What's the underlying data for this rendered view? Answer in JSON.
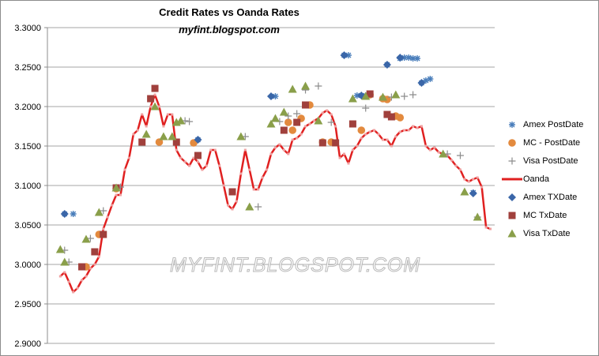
{
  "chart_data": {
    "type": "scatter",
    "title": "Credit Rates vs Oanda Rates",
    "subtitle": "myfint.blogspot.com",
    "watermark": "MYFINT.BLOGSPOT.COM",
    "ylim": [
      2.9,
      3.3
    ],
    "xlim": [
      0,
      104
    ],
    "yticks": [
      "3.3000",
      "3.2500",
      "3.2000",
      "3.1500",
      "3.1000",
      "3.0500",
      "3.0000",
      "2.9500",
      "2.9000"
    ],
    "grid": "horizontal",
    "legend_position": "right",
    "series": [
      {
        "name": "Amex PostDate",
        "marker": "asterisk",
        "color": "#4a7ebb",
        "points": [
          [
            4,
            3.064
          ],
          [
            6,
            3.064
          ],
          [
            35,
            3.158
          ],
          [
            53,
            3.213
          ],
          [
            69,
            3.265
          ],
          [
            70,
            3.265
          ],
          [
            72,
            3.214
          ],
          [
            74,
            3.214
          ],
          [
            79,
            3.253
          ],
          [
            82,
            3.261
          ],
          [
            83,
            3.262
          ],
          [
            84,
            3.262
          ],
          [
            85,
            3.261
          ],
          [
            86,
            3.261
          ],
          [
            87,
            3.23
          ],
          [
            88,
            3.233
          ],
          [
            89,
            3.235
          ],
          [
            99,
            3.091
          ]
        ]
      },
      {
        "name": "MC - PostDate",
        "marker": "circle",
        "color": "#e38a3e",
        "points": [
          [
            9,
            2.997
          ],
          [
            12,
            3.038
          ],
          [
            16,
            3.096
          ],
          [
            26,
            3.155
          ],
          [
            34,
            3.154
          ],
          [
            56,
            3.18
          ],
          [
            57,
            3.17
          ],
          [
            59,
            3.185
          ],
          [
            61,
            3.202
          ],
          [
            64,
            3.155
          ],
          [
            66,
            3.155
          ],
          [
            73,
            3.17
          ],
          [
            75,
            3.215
          ],
          [
            78,
            3.21
          ],
          [
            79,
            3.209
          ],
          [
            81,
            3.188
          ],
          [
            82,
            3.186
          ]
        ]
      },
      {
        "name": "Visa PostDate",
        "marker": "plus",
        "color": "#8c8c8c",
        "points": [
          [
            4,
            3.018
          ],
          [
            5,
            3.003
          ],
          [
            10,
            3.033
          ],
          [
            13,
            3.068
          ],
          [
            17,
            3.098
          ],
          [
            32,
            3.182
          ],
          [
            33,
            3.181
          ],
          [
            46,
            3.162
          ],
          [
            49,
            3.073
          ],
          [
            54,
            3.181
          ],
          [
            56,
            3.188
          ],
          [
            58,
            3.191
          ],
          [
            60,
            3.221
          ],
          [
            63,
            3.226
          ],
          [
            66,
            3.18
          ],
          [
            74,
            3.198
          ],
          [
            80,
            3.212
          ],
          [
            83,
            3.213
          ],
          [
            85,
            3.215
          ],
          [
            93,
            3.14
          ],
          [
            96,
            3.138
          ],
          [
            100,
            3.06
          ]
        ]
      },
      {
        "name": "Oanda",
        "marker": "line",
        "color": "#e02020",
        "points": [
          [
            3,
            2.985
          ],
          [
            4,
            2.99
          ],
          [
            5,
            2.978
          ],
          [
            6,
            2.965
          ],
          [
            7,
            2.97
          ],
          [
            8,
            2.98
          ],
          [
            9,
            2.985
          ],
          [
            10,
            2.995
          ],
          [
            11,
            3.0
          ],
          [
            12,
            3.01
          ],
          [
            13,
            3.045
          ],
          [
            14,
            3.06
          ],
          [
            15,
            3.075
          ],
          [
            16,
            3.088
          ],
          [
            17,
            3.088
          ],
          [
            18,
            3.12
          ],
          [
            19,
            3.135
          ],
          [
            20,
            3.165
          ],
          [
            21,
            3.17
          ],
          [
            22,
            3.19
          ],
          [
            23,
            3.175
          ],
          [
            24,
            3.2
          ],
          [
            25,
            3.215
          ],
          [
            26,
            3.2
          ],
          [
            27,
            3.175
          ],
          [
            28,
            3.19
          ],
          [
            29,
            3.19
          ],
          [
            30,
            3.145
          ],
          [
            31,
            3.135
          ],
          [
            32,
            3.13
          ],
          [
            33,
            3.125
          ],
          [
            34,
            3.135
          ],
          [
            35,
            3.13
          ],
          [
            36,
            3.12
          ],
          [
            37,
            3.125
          ],
          [
            38,
            3.145
          ],
          [
            39,
            3.145
          ],
          [
            40,
            3.125
          ],
          [
            41,
            3.1
          ],
          [
            42,
            3.075
          ],
          [
            43,
            3.07
          ],
          [
            44,
            3.08
          ],
          [
            45,
            3.115
          ],
          [
            46,
            3.145
          ],
          [
            47,
            3.12
          ],
          [
            48,
            3.095
          ],
          [
            49,
            3.095
          ],
          [
            50,
            3.11
          ],
          [
            51,
            3.12
          ],
          [
            52,
            3.14
          ],
          [
            53,
            3.148
          ],
          [
            54,
            3.152
          ],
          [
            55,
            3.145
          ],
          [
            56,
            3.14
          ],
          [
            57,
            3.158
          ],
          [
            58,
            3.16
          ],
          [
            59,
            3.165
          ],
          [
            60,
            3.175
          ],
          [
            61,
            3.178
          ],
          [
            62,
            3.182
          ],
          [
            63,
            3.185
          ],
          [
            64,
            3.192
          ],
          [
            65,
            3.195
          ],
          [
            66,
            3.19
          ],
          [
            67,
            3.175
          ],
          [
            68,
            3.135
          ],
          [
            69,
            3.14
          ],
          [
            70,
            3.128
          ],
          [
            71,
            3.145
          ],
          [
            72,
            3.15
          ],
          [
            73,
            3.16
          ],
          [
            74,
            3.165
          ],
          [
            75,
            3.168
          ],
          [
            76,
            3.17
          ],
          [
            77,
            3.165
          ],
          [
            78,
            3.158
          ],
          [
            79,
            3.158
          ],
          [
            80,
            3.15
          ],
          [
            81,
            3.162
          ],
          [
            82,
            3.168
          ],
          [
            83,
            3.17
          ],
          [
            84,
            3.17
          ],
          [
            85,
            3.175
          ],
          [
            86,
            3.173
          ],
          [
            87,
            3.175
          ],
          [
            88,
            3.15
          ],
          [
            89,
            3.145
          ],
          [
            90,
            3.148
          ],
          [
            91,
            3.142
          ],
          [
            92,
            3.14
          ],
          [
            93,
            3.138
          ],
          [
            94,
            3.132
          ],
          [
            95,
            3.125
          ],
          [
            96,
            3.12
          ],
          [
            97,
            3.108
          ],
          [
            98,
            3.105
          ],
          [
            99,
            3.108
          ],
          [
            100,
            3.11
          ],
          [
            101,
            3.098
          ],
          [
            102,
            3.047
          ],
          [
            103,
            3.045
          ]
        ]
      },
      {
        "name": "Amex TXDate",
        "marker": "diamond",
        "color": "#3a66a8",
        "points": [
          [
            4,
            3.064
          ],
          [
            35,
            3.158
          ],
          [
            52,
            3.213
          ],
          [
            69,
            3.265
          ],
          [
            73,
            3.214
          ],
          [
            79,
            3.253
          ],
          [
            82,
            3.262
          ],
          [
            87,
            3.23
          ],
          [
            99,
            3.09
          ]
        ]
      },
      {
        "name": "MC TxDate",
        "marker": "square",
        "color": "#a0403c",
        "points": [
          [
            8,
            2.997
          ],
          [
            11,
            3.016
          ],
          [
            13,
            3.038
          ],
          [
            16,
            3.097
          ],
          [
            22,
            3.155
          ],
          [
            24,
            3.21
          ],
          [
            25,
            3.223
          ],
          [
            30,
            3.155
          ],
          [
            35,
            3.138
          ],
          [
            43,
            3.092
          ],
          [
            55,
            3.17
          ],
          [
            58,
            3.18
          ],
          [
            60,
            3.202
          ],
          [
            64,
            3.154
          ],
          [
            67,
            3.154
          ],
          [
            71,
            3.178
          ],
          [
            75,
            3.216
          ],
          [
            79,
            3.19
          ],
          [
            80,
            3.187
          ]
        ]
      },
      {
        "name": "Visa TxDate",
        "marker": "triangle",
        "color": "#8a9f4a",
        "points": [
          [
            3,
            3.019
          ],
          [
            4,
            3.003
          ],
          [
            9,
            3.032
          ],
          [
            12,
            3.066
          ],
          [
            16,
            3.097
          ],
          [
            23,
            3.165
          ],
          [
            25,
            3.2
          ],
          [
            27,
            3.162
          ],
          [
            29,
            3.162
          ],
          [
            30,
            3.18
          ],
          [
            31,
            3.182
          ],
          [
            45,
            3.162
          ],
          [
            47,
            3.073
          ],
          [
            52,
            3.178
          ],
          [
            53,
            3.185
          ],
          [
            55,
            3.193
          ],
          [
            57,
            3.222
          ],
          [
            60,
            3.226
          ],
          [
            63,
            3.182
          ],
          [
            71,
            3.21
          ],
          [
            74,
            3.213
          ],
          [
            78,
            3.212
          ],
          [
            81,
            3.215
          ],
          [
            92,
            3.14
          ],
          [
            97,
            3.092
          ],
          [
            100,
            3.06
          ]
        ]
      }
    ]
  }
}
